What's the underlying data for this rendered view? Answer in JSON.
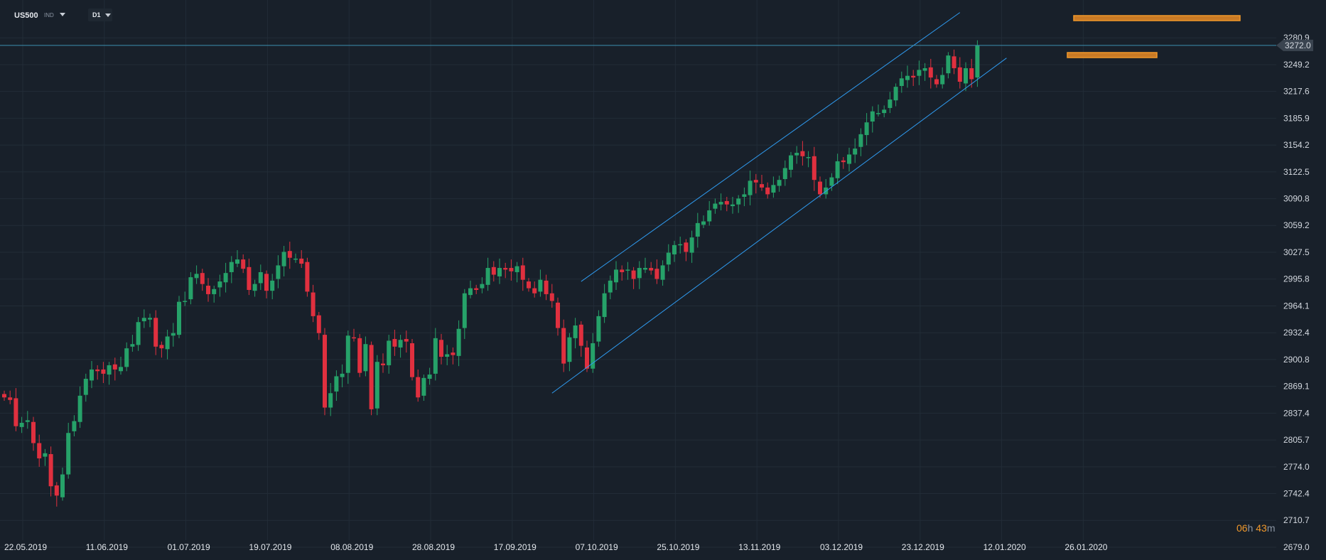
{
  "header": {
    "symbol": "US500",
    "symbol_type": "IND",
    "timeframe": "D1"
  },
  "countdown": {
    "hours": "06",
    "h_unit": "h",
    "minutes": "43",
    "m_unit": "m"
  },
  "colors": {
    "background": "#18202a",
    "bull": "#26a269",
    "bear": "#e0303f",
    "channel": "#2f9bf0",
    "zone": "#f0982b",
    "price_line": "#3c8fb0"
  },
  "chart_data": {
    "type": "candlestick",
    "symbol": "US500",
    "timeframe": "D1",
    "ylim": [
      2679.0,
      3292.0
    ],
    "y_ticks": [
      3280.9,
      3249.2,
      3217.6,
      3185.9,
      3154.2,
      3122.5,
      3090.8,
      3059.2,
      3027.5,
      2995.8,
      2964.1,
      2932.4,
      2900.8,
      2869.1,
      2837.4,
      2805.7,
      2774.0,
      2742.4,
      2710.7,
      2679.0
    ],
    "y_tick_labels": [
      "3280.9",
      "3249.2",
      "3217.6",
      "3185.9",
      "3154.2",
      "3122.5",
      "3090.8",
      "3059.2",
      "3027.5",
      "2995.8",
      "2964.1",
      "2932.4",
      "2900.8",
      "2869.1",
      "2837.4",
      "2805.7",
      "2774.0",
      "2742.4",
      "2710.7",
      "2679.0"
    ],
    "x_ticks": [
      "22.05.2019",
      "11.06.2019",
      "01.07.2019",
      "19.07.2019",
      "08.08.2019",
      "28.08.2019",
      "17.09.2019",
      "07.10.2019",
      "25.10.2019",
      "13.11.2019",
      "03.12.2019",
      "23.12.2019",
      "12.01.2020",
      "26.01.2020"
    ],
    "x_tick_bar_index": [
      0,
      14,
      28,
      42,
      56,
      70,
      84,
      98,
      112,
      126,
      140,
      154,
      168,
      182
    ],
    "current_price": 3272.0,
    "current_price_label": "3272.0",
    "closes": [
      2856,
      2853,
      2822,
      2826,
      2829,
      2802,
      2784,
      2790,
      2751,
      2740,
      2765,
      2814,
      2828,
      2858,
      2878,
      2889,
      2887,
      2884,
      2894,
      2889,
      2892,
      2914,
      2919,
      2945,
      2950,
      2950,
      2916,
      2914,
      2928,
      2932,
      2969,
      2970,
      2998,
      3002,
      2990,
      2978,
      2984,
      2993,
      3003,
      3016,
      3019,
      3008,
      2983,
      2990,
      3004,
      2982,
      2994,
      3012,
      3028,
      3021,
      3020,
      3014,
      2981,
      2952,
      2932,
      2844,
      2861,
      2881,
      2884,
      2929,
      2926,
      2885,
      2919,
      2842,
      2898,
      2894,
      2923,
      2916,
      2924,
      2922,
      2880,
      2856,
      2879,
      2883,
      2926,
      2904,
      2907,
      2906,
      2937,
      2979,
      2985,
      2983,
      2990,
      3009,
      3001,
      3009,
      3007,
      3005,
      3011,
      2995,
      2985,
      2979,
      2995,
      2978,
      2970,
      2938,
      2896,
      2927,
      2941,
      2917,
      2890,
      2920,
      2952,
      2979,
      2994,
      3007,
      3004,
      3007,
      2996,
      3009,
      3009,
      3006,
      2996,
      3012,
      3027,
      3036,
      3037,
      3028,
      3045,
      3062,
      3064,
      3077,
      3085,
      3087,
      3084,
      3084,
      3091,
      3096,
      3112,
      3110,
      3104,
      3096,
      3107,
      3113,
      3127,
      3142,
      3145,
      3141,
      3140,
      3113,
      3096,
      3104,
      3116,
      3135,
      3134,
      3143,
      3150,
      3167,
      3181,
      3194,
      3192,
      3196,
      3208,
      3223,
      3233,
      3236,
      3234,
      3243,
      3245,
      3234,
      3226,
      3237,
      3260,
      3245,
      3229,
      3245,
      3232,
      3272
    ]
  }
}
